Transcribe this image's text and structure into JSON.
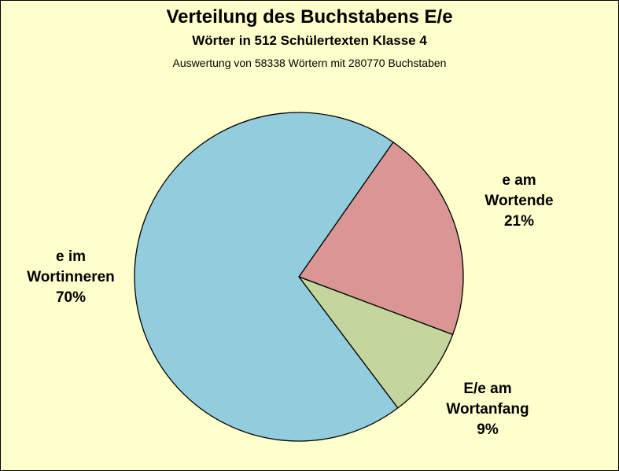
{
  "chart_data": {
    "type": "pie",
    "title": "Verteilung des Buchstabens E/e",
    "subtitle": "Wörter in 512 Schülertexten Klasse 4",
    "note": "Auswertung von 58338 Wörtern mit 280770 Buchstaben",
    "slices": [
      {
        "label_line1": "e am",
        "label_line2": "Wortende",
        "value_label": "21%",
        "value": 21,
        "color": "#d99694"
      },
      {
        "label_line1": "E/e am",
        "label_line2": "Wortanfang",
        "value_label": "9%",
        "value": 9,
        "color": "#c3d69b"
      },
      {
        "label_line1": "e im",
        "label_line2": "Wortinneren",
        "value_label": "70%",
        "value": 70,
        "color": "#93cddd"
      }
    ],
    "start_angle_deg": 35,
    "direction": "clockwise",
    "legend": "none"
  }
}
